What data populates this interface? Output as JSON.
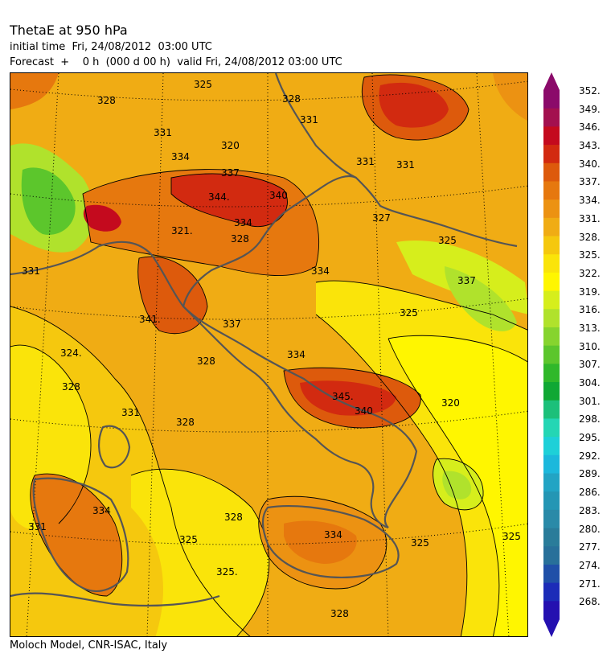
{
  "header": {
    "title": "ThetaE at 950 hPa",
    "initial_time": "initial time  Fri, 24/08/2012  03:00 UTC",
    "forecast": "Forecast  +    0 h  (000 d 00 h)  valid Fri, 24/08/2012 03:00 UTC"
  },
  "footer": {
    "credit": "Moloch Model, CNR-ISAC, Italy"
  },
  "colorbar": {
    "labels": [
      "352.",
      "349.",
      "346.",
      "343.",
      "340.",
      "337.",
      "334.",
      "331.",
      "328.",
      "325.",
      "322.",
      "319.",
      "316.",
      "313.",
      "310.",
      "307.",
      "304.",
      "301.",
      "298.",
      "295.",
      "292.",
      "289.",
      "286.",
      "283.",
      "280.",
      "277.",
      "274.",
      "271.",
      "268."
    ],
    "colors": [
      "#8b0a6a",
      "#a3104f",
      "#c40a1e",
      "#d22a10",
      "#dd5a0c",
      "#e6780e",
      "#ec9212",
      "#f0ac14",
      "#f5c80e",
      "#fae40a",
      "#fff600",
      "#d6ee1c",
      "#b0e22c",
      "#86d42e",
      "#5cc62c",
      "#30b82a",
      "#10a834",
      "#1cc07a",
      "#24d6b4",
      "#1ed0d8",
      "#1cb8dc",
      "#22a4c4",
      "#2496b4",
      "#2a8aa8",
      "#2a7c9a",
      "#28709a",
      "#2050a8",
      "#1c2cb8",
      "#2410b0"
    ]
  },
  "contour_labels": [
    {
      "text": "328"
    },
    {
      "text": "325"
    },
    {
      "text": "328"
    },
    {
      "text": "331"
    },
    {
      "text": "331"
    },
    {
      "text": "334"
    },
    {
      "text": "320"
    },
    {
      "text": "337"
    },
    {
      "text": "344."
    },
    {
      "text": "340"
    },
    {
      "text": "334"
    },
    {
      "text": "331"
    },
    {
      "text": "321."
    },
    {
      "text": "328"
    },
    {
      "text": "331"
    },
    {
      "text": "331"
    },
    {
      "text": "334"
    },
    {
      "text": "327"
    },
    {
      "text": "325"
    },
    {
      "text": "341."
    },
    {
      "text": "324."
    },
    {
      "text": "328"
    },
    {
      "text": "328"
    },
    {
      "text": "337"
    },
    {
      "text": "334"
    },
    {
      "text": "325"
    },
    {
      "text": "345."
    },
    {
      "text": "340"
    },
    {
      "text": "320"
    },
    {
      "text": "328"
    },
    {
      "text": "331"
    },
    {
      "text": "334"
    },
    {
      "text": "331"
    },
    {
      "text": "328"
    },
    {
      "text": "325"
    },
    {
      "text": "325."
    },
    {
      "text": "334"
    },
    {
      "text": "328"
    },
    {
      "text": "325"
    },
    {
      "text": "325"
    },
    {
      "text": "337"
    }
  ]
}
